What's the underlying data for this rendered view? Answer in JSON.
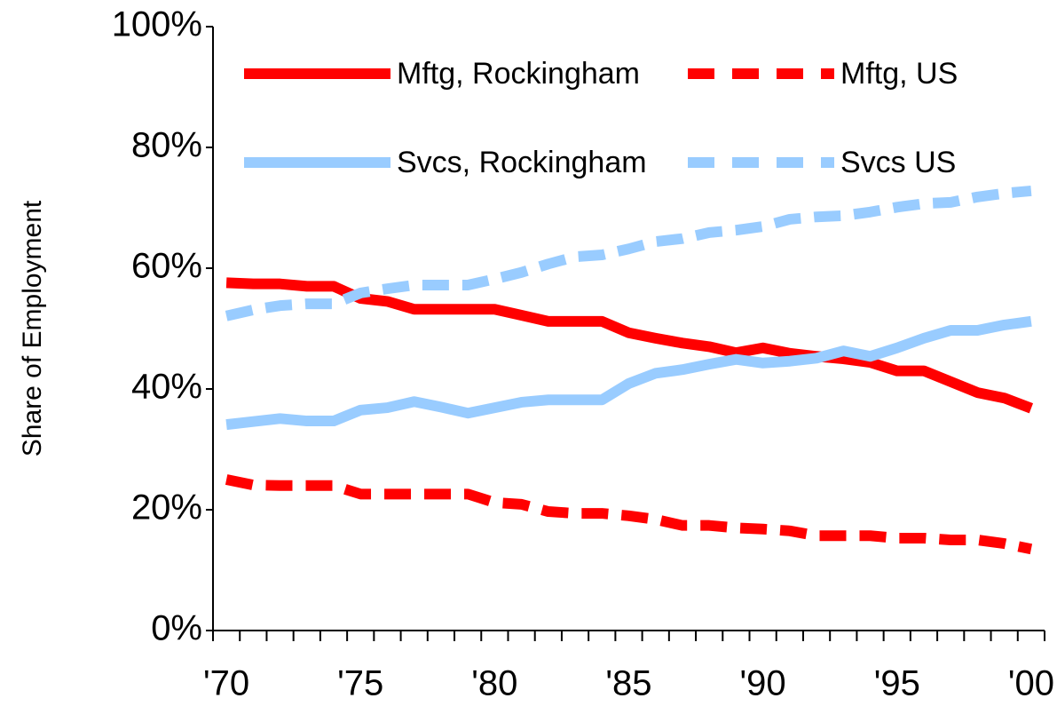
{
  "chart_data": {
    "type": "line",
    "ylabel": "Share of Employment",
    "categories": [
      "'70",
      null,
      null,
      null,
      null,
      "'75",
      null,
      null,
      null,
      null,
      "'80",
      null,
      null,
      null,
      null,
      "'85",
      null,
      null,
      null,
      null,
      "'90",
      null,
      null,
      null,
      null,
      "'95",
      null,
      null,
      null,
      null,
      "'00"
    ],
    "series": [
      {
        "name": "Mftg, Rockingham",
        "color": "#ff0000",
        "dashed": false,
        "values": [
          57.6,
          57.4,
          57.4,
          57,
          57,
          55,
          54.5,
          53.2,
          53.2,
          53.2,
          53.2,
          52.2,
          51.2,
          51.2,
          51.2,
          49.3,
          48.4,
          47.6,
          47,
          46,
          46.8,
          45.9,
          45.4,
          45,
          44.4,
          43,
          43,
          41.2,
          39.4,
          38.5,
          36.8
        ]
      },
      {
        "name": "Mftg, US",
        "color": "#ff0000",
        "dashed": true,
        "values": [
          25,
          24.1,
          24,
          24,
          24,
          22.6,
          22.6,
          22.6,
          22.6,
          22.6,
          21.2,
          20.9,
          19.7,
          19.4,
          19.4,
          19,
          18.4,
          17.4,
          17.4,
          17,
          16.8,
          16.5,
          15.7,
          15.7,
          15.7,
          15.3,
          15.3,
          15,
          15,
          14.4,
          13.5
        ]
      },
      {
        "name": "Svcs, Rockingham",
        "color": "#99ccff",
        "dashed": false,
        "values": [
          34.1,
          34.6,
          35.1,
          34.7,
          34.7,
          36.5,
          36.9,
          37.9,
          37,
          36,
          36.9,
          37.8,
          38.2,
          38.2,
          38.2,
          40.9,
          42.6,
          43.2,
          44.1,
          44.9,
          44.3,
          44.6,
          45.1,
          46.3,
          45.4,
          46.8,
          48.4,
          49.7,
          49.7,
          50.6,
          51.2
        ]
      },
      {
        "name": "Svcs US",
        "color": "#99ccff",
        "dashed": true,
        "values": [
          52.1,
          53.1,
          53.8,
          54.1,
          54.1,
          55.9,
          56.6,
          57.2,
          57.2,
          57.2,
          58.2,
          59.3,
          60.7,
          61.9,
          62.2,
          63.2,
          64.4,
          64.9,
          65.9,
          66.3,
          66.9,
          68.1,
          68.5,
          68.7,
          69.3,
          70.1,
          70.7,
          70.9,
          71.8,
          72.4,
          72.8
        ]
      }
    ],
    "ylim": [
      0,
      100
    ],
    "yticks": [
      {
        "value": 0,
        "label": "0%"
      },
      {
        "value": 20,
        "label": "20%"
      },
      {
        "value": 40,
        "label": "40%"
      },
      {
        "value": 60,
        "label": "60%"
      },
      {
        "value": 80,
        "label": "80%"
      },
      {
        "value": 100,
        "label": "100%"
      }
    ],
    "grid": false
  }
}
